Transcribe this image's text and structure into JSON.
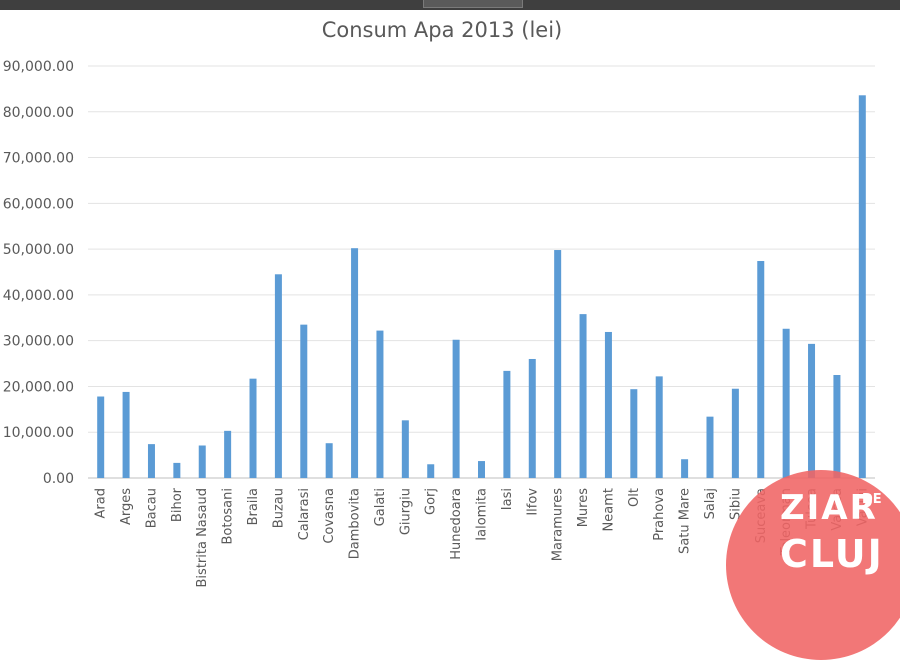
{
  "chart_data": {
    "type": "bar",
    "title": "Consum Apa 2013 (lei)",
    "xlabel": "",
    "ylabel": "",
    "ylim": [
      0,
      90000
    ],
    "yticks": [
      0,
      10000,
      20000,
      30000,
      40000,
      50000,
      60000,
      70000,
      80000,
      90000
    ],
    "ytick_labels": [
      "0.00",
      "10,000.00",
      "20,000.00",
      "30,000.00",
      "40,000.00",
      "50,000.00",
      "60,000.00",
      "70,000.00",
      "80,000.00",
      "90,000.00"
    ],
    "grid": true,
    "bar_color": "#5b9bd5",
    "categories": [
      "Arad",
      "Arges",
      "Bacau",
      "Bihor",
      "Bistrita Nasaud",
      "Botosani",
      "Braila",
      "Buzau",
      "Calarasi",
      "Covasna",
      "Dambovita",
      "Galati",
      "Giurgiu",
      "Gorj",
      "Hunedoara",
      "Ialomita",
      "Iasi",
      "Ilfov",
      "Maramures",
      "Mures",
      "Neamt",
      "Olt",
      "Prahova",
      "Satu Mare",
      "Salaj",
      "Sibiu",
      "Suceava",
      "Teleorman",
      "Tulcea",
      "Valcea",
      "Vaslui"
    ],
    "values": [
      17800,
      18800,
      7400,
      3300,
      7100,
      10300,
      21700,
      44500,
      33500,
      7600,
      50200,
      32200,
      12600,
      3000,
      30200,
      3700,
      23400,
      26000,
      49800,
      35800,
      31900,
      19400,
      22200,
      4100,
      13400,
      19500,
      47400,
      32600,
      29300,
      22500,
      83600
    ]
  },
  "watermark": {
    "line1": "ZIAR",
    "superscript": "DE",
    "line2": "CLUJ"
  }
}
